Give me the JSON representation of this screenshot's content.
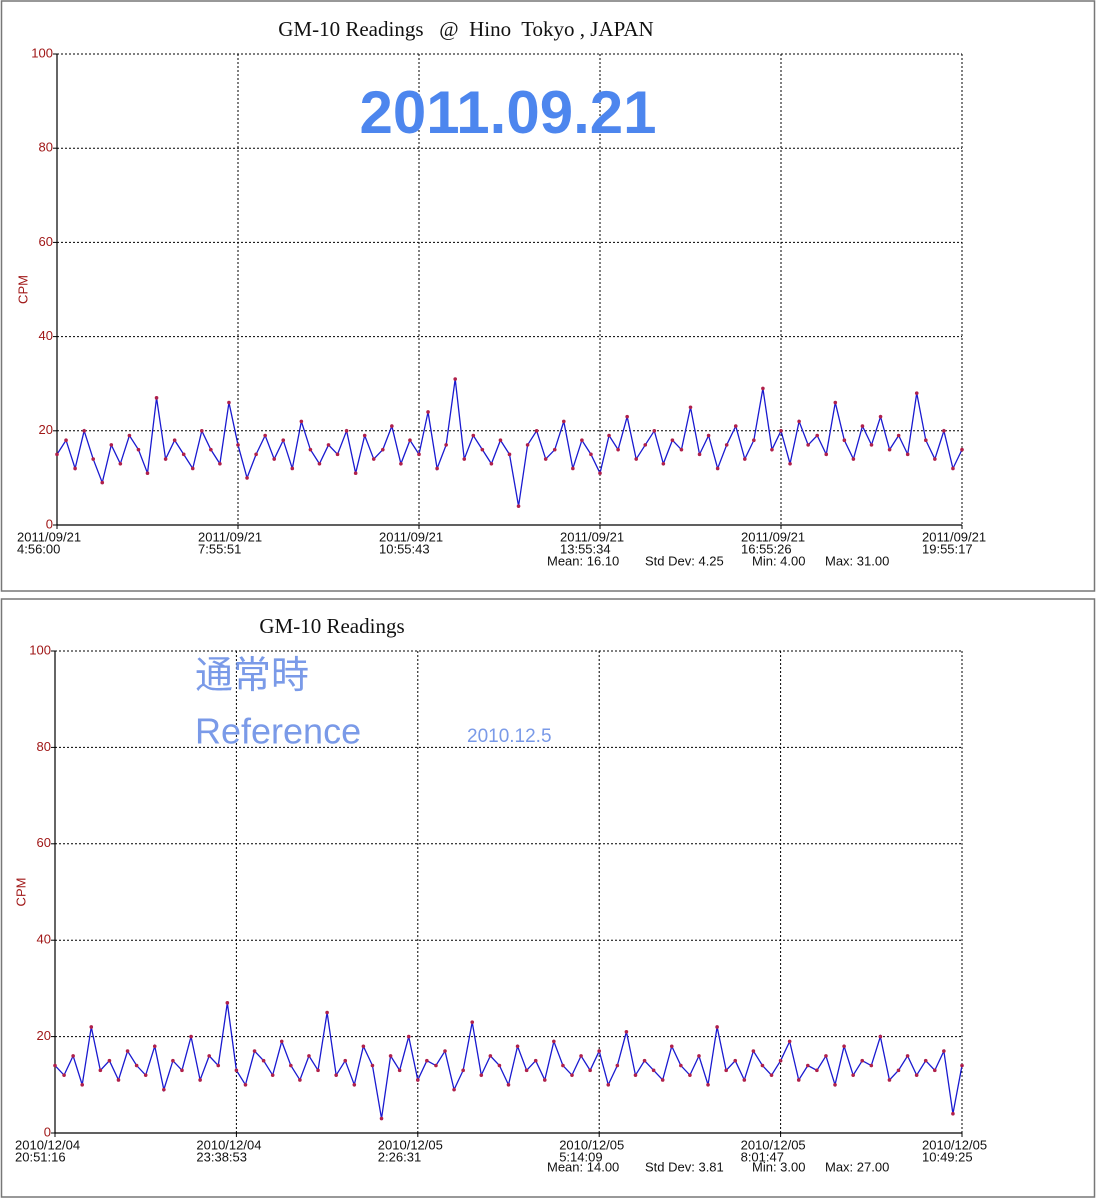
{
  "chart_data": [
    {
      "type": "line",
      "title": "GM-10 Readings   @  Hino  Tokyo , JAPAN",
      "annotations": [
        "2011.09.21"
      ],
      "ylabel": "CPM",
      "xlim": [
        0,
        100
      ],
      "ylim": [
        0,
        100
      ],
      "yticks": [
        0,
        20,
        40,
        60,
        80,
        100
      ],
      "grid": true,
      "xticks": [
        {
          "value": 0,
          "label": "2011/09/21",
          "time": "4:56:00"
        },
        {
          "value": 20,
          "label": "2011/09/21",
          "time": "7:55:51"
        },
        {
          "value": 40,
          "label": "2011/09/21",
          "time": "10:55:43"
        },
        {
          "value": 60,
          "label": "2011/09/21",
          "time": "13:55:34"
        },
        {
          "value": 80,
          "label": "2011/09/21",
          "time": "16:55:26"
        },
        {
          "value": 100,
          "label": "2011/09/21",
          "time": "19:55:17"
        }
      ],
      "stats": [
        "Mean: 16.10",
        "Std Dev: 4.25",
        "Min: 4.00",
        "Max: 31.00"
      ],
      "line_color": "#1a1ad0",
      "marker_color": "#b0204a",
      "values": [
        15,
        18,
        12,
        20,
        14,
        9,
        17,
        13,
        19,
        16,
        11,
        27,
        14,
        18,
        15,
        12,
        20,
        16,
        13,
        26,
        17,
        10,
        15,
        19,
        14,
        18,
        12,
        22,
        16,
        13,
        17,
        15,
        20,
        11,
        19,
        14,
        16,
        21,
        13,
        18,
        15,
        24,
        12,
        17,
        31,
        14,
        19,
        16,
        13,
        18,
        15,
        4,
        17,
        20,
        14,
        16,
        22,
        12,
        18,
        15,
        11,
        19,
        16,
        23,
        14,
        17,
        20,
        13,
        18,
        16,
        25,
        15,
        19,
        12,
        17,
        21,
        14,
        18,
        29,
        16,
        20,
        13,
        22,
        17,
        19,
        15,
        26,
        18,
        14,
        21,
        17,
        23,
        16,
        19,
        15,
        28,
        18,
        14,
        20,
        12,
        16
      ]
    },
    {
      "type": "line",
      "title": "GM-10 Readings",
      "annotations": [
        "通常時",
        "Reference",
        "2010.12.5"
      ],
      "ylabel": "CPM",
      "xlim": [
        0,
        100
      ],
      "ylim": [
        0,
        100
      ],
      "yticks": [
        0,
        20,
        40,
        60,
        80,
        100
      ],
      "grid": true,
      "xticks": [
        {
          "value": 0,
          "label": "2010/12/04",
          "time": "20:51:16"
        },
        {
          "value": 20,
          "label": "2010/12/04",
          "time": "23:38:53"
        },
        {
          "value": 40,
          "label": "2010/12/05",
          "time": "2:26:31"
        },
        {
          "value": 60,
          "label": "2010/12/05",
          "time": "5:14:09"
        },
        {
          "value": 80,
          "label": "2010/12/05",
          "time": "8:01:47"
        },
        {
          "value": 100,
          "label": "2010/12/05",
          "time": "10:49:25"
        }
      ],
      "stats": [
        "Mean: 14.00",
        "Std Dev: 3.81",
        "Min: 3.00",
        "Max: 27.00"
      ],
      "line_color": "#1a1ad0",
      "marker_color": "#b0204a",
      "values": [
        14,
        12,
        16,
        10,
        22,
        13,
        15,
        11,
        17,
        14,
        12,
        18,
        9,
        15,
        13,
        20,
        11,
        16,
        14,
        27,
        13,
        10,
        17,
        15,
        12,
        19,
        14,
        11,
        16,
        13,
        25,
        12,
        15,
        10,
        18,
        14,
        3,
        16,
        13,
        20,
        11,
        15,
        14,
        17,
        9,
        13,
        23,
        12,
        16,
        14,
        10,
        18,
        13,
        15,
        11,
        19,
        14,
        12,
        16,
        13,
        17,
        10,
        14,
        21,
        12,
        15,
        13,
        11,
        18,
        14,
        12,
        16,
        10,
        22,
        13,
        15,
        11,
        17,
        14,
        12,
        15,
        19,
        11,
        14,
        13,
        16,
        10,
        18,
        12,
        15,
        14,
        20,
        11,
        13,
        16,
        12,
        15,
        13,
        17,
        4,
        14
      ]
    }
  ]
}
